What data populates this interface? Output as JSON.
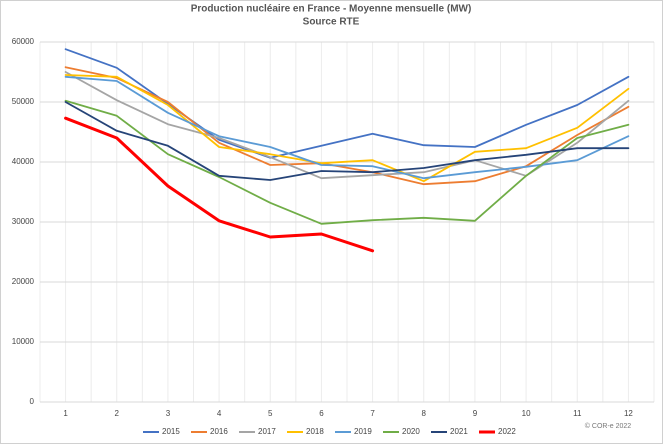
{
  "chart_data": {
    "type": "line",
    "title": "Production nucléaire en France - Moyenne mensuelle (MW)",
    "subtitle": "Source RTE",
    "annotation": "© COR-e 2022",
    "categories": [
      "1",
      "2",
      "3",
      "4",
      "5",
      "6",
      "7",
      "8",
      "9",
      "10",
      "11",
      "12"
    ],
    "ylim": [
      0,
      60000
    ],
    "yticks": [
      0,
      10000,
      20000,
      30000,
      40000,
      50000,
      60000
    ],
    "grid": true,
    "legend": "bottom",
    "series": [
      {
        "name": "2015",
        "color": "#4472c4",
        "values": [
          58800,
          55700,
          49700,
          43700,
          40700,
          42700,
          44700,
          42800,
          42500,
          46200,
          49500,
          54200
        ]
      },
      {
        "name": "2016",
        "color": "#ed7d31",
        "values": [
          55800,
          54000,
          50000,
          43200,
          39500,
          39800,
          38300,
          36300,
          36800,
          39300,
          44500,
          49200
        ]
      },
      {
        "name": "2017",
        "color": "#a5a5a5",
        "values": [
          55000,
          50300,
          46300,
          44000,
          40800,
          37300,
          37800,
          38300,
          40300,
          37700,
          43200,
          50200
        ]
      },
      {
        "name": "2018",
        "color": "#ffc000",
        "values": [
          54500,
          54200,
          49500,
          42500,
          41300,
          39800,
          40300,
          36800,
          41700,
          42300,
          45700,
          52200
        ]
      },
      {
        "name": "2019",
        "color": "#5b9bd5",
        "values": [
          54200,
          53500,
          48200,
          44300,
          42500,
          39500,
          39300,
          37300,
          38300,
          39200,
          40300,
          44300
        ]
      },
      {
        "name": "2020",
        "color": "#70ad47",
        "values": [
          50200,
          47700,
          41300,
          37500,
          33200,
          29700,
          30300,
          30700,
          30200,
          37700,
          44000,
          46200
        ]
      },
      {
        "name": "2021",
        "color": "#264478",
        "values": [
          50000,
          45200,
          42700,
          37700,
          37000,
          38500,
          38300,
          39000,
          40300,
          41200,
          42300,
          42300
        ]
      },
      {
        "name": "2022",
        "color": "#ff0000",
        "values": [
          47300,
          44000,
          36000,
          30200,
          27500,
          28000,
          25200,
          null,
          null,
          null,
          null,
          null
        ]
      }
    ]
  }
}
